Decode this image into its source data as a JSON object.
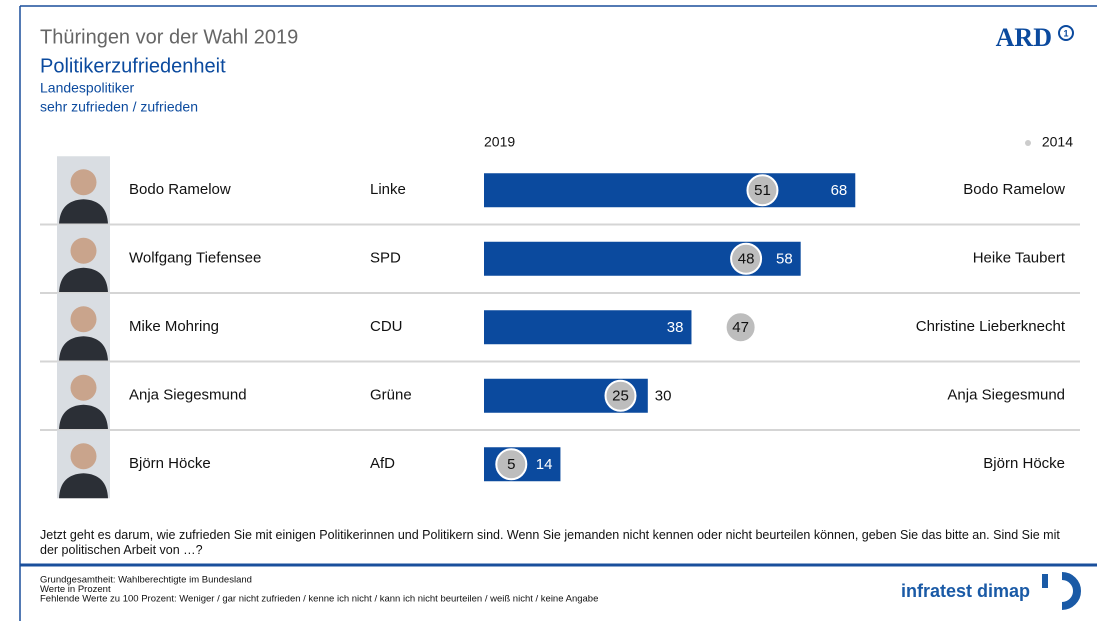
{
  "chart_data": {
    "type": "bar",
    "title": "Thüringen vor der Wahl 2019",
    "subtitle": "Politikerzufriedenheit",
    "notes": [
      "Landespolitiker",
      "sehr zufrieden / zufrieden"
    ],
    "logo": "ARD",
    "categories": [
      "Bodo Ramelow",
      "Wolfgang Tiefensee",
      "Mike Mohring",
      "Anja Siegesmund",
      "Björn Höcke"
    ],
    "parties": [
      "Linke",
      "SPD",
      "CDU",
      "Grüne",
      "AfD"
    ],
    "series": [
      {
        "name": "2019",
        "color": "#0b4a9e",
        "values": [
          68,
          58,
          38,
          30,
          14
        ]
      },
      {
        "name": "2014",
        "color": "#bdbdbd",
        "values": [
          51,
          48,
          47,
          25,
          5
        ],
        "people": [
          "Bodo Ramelow",
          "Heike Taubert",
          "Christine Lieberknecht",
          "Anja Siegesmund",
          "Björn Höcke"
        ]
      }
    ],
    "xlim": [
      0,
      100
    ],
    "question": "Jetzt geht es darum, wie zufrieden Sie mit einigen Politikerinnen und Politikern sind. Wenn Sie jemanden nicht kennen oder nicht beurteilen können, geben Sie das bitte an. Sind Sie mit der politischen Arbeit von …?",
    "footnotes": [
      "Grundgesamtheit: Wahlberechtigte im Bundesland",
      "Werte in Prozent",
      "Fehlende Werte zu 100 Prozent: Weniger / gar nicht zufrieden / kenne ich nicht / kann ich nicht beurteilen / weiß nicht / keine Angabe"
    ],
    "source": "infratest dimap"
  }
}
